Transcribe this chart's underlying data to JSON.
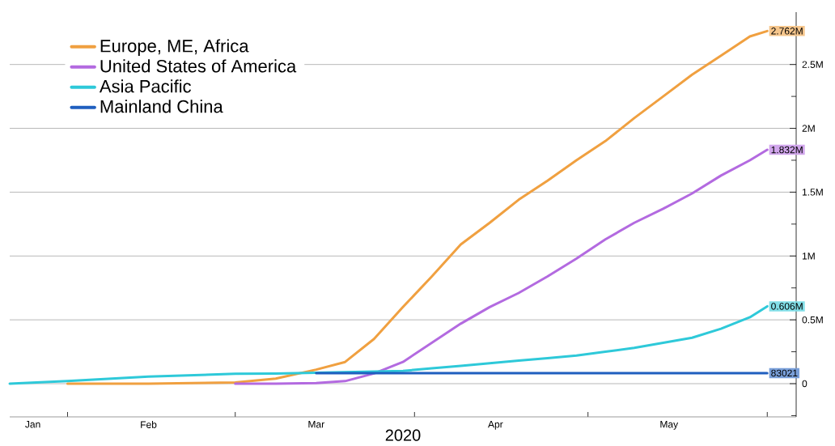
{
  "chart_data": {
    "type": "line",
    "xlabel": "2020",
    "x": [
      "2020-01-22",
      "2020-02-01",
      "2020-02-15",
      "2020-03-01",
      "2020-03-08",
      "2020-03-15",
      "2020-03-20",
      "2020-03-25",
      "2020-03-30",
      "2020-04-04",
      "2020-04-09",
      "2020-04-14",
      "2020-04-19",
      "2020-04-24",
      "2020-04-29",
      "2020-05-04",
      "2020-05-09",
      "2020-05-14",
      "2020-05-19",
      "2020-05-24",
      "2020-05-29",
      "2020-06-01"
    ],
    "series": [
      {
        "name": "Europe, ME, Africa",
        "color": "#f0a040",
        "values": [
          null,
          0,
          0,
          10000,
          40000,
          110000,
          170000,
          350000,
          600000,
          840000,
          1090000,
          1260000,
          1440000,
          1590000,
          1750000,
          1900000,
          2080000,
          2250000,
          2420000,
          2570000,
          2720000,
          2762000
        ],
        "value_labels": [
          null,
          null,
          null,
          null,
          null,
          null,
          null,
          null,
          null,
          null,
          null,
          null,
          null,
          null,
          null,
          null,
          null,
          null,
          null,
          null,
          null,
          "2.762M"
        ]
      },
      {
        "name": "United States of America",
        "color": "#b36ae0",
        "values": [
          null,
          null,
          null,
          0,
          0,
          5000,
          20000,
          80000,
          170000,
          320000,
          470000,
          600000,
          710000,
          840000,
          980000,
          1130000,
          1260000,
          1370000,
          1490000,
          1630000,
          1750000,
          1832000
        ],
        "value_labels": [
          null,
          null,
          null,
          null,
          null,
          null,
          null,
          null,
          null,
          null,
          null,
          null,
          null,
          null,
          null,
          null,
          null,
          null,
          null,
          null,
          null,
          "1.832M"
        ]
      },
      {
        "name": "Asia Pacific",
        "color": "#2ec9d9",
        "values": [
          0,
          20000,
          55000,
          77000,
          80000,
          85000,
          90000,
          95000,
          100000,
          120000,
          140000,
          160000,
          180000,
          200000,
          220000,
          250000,
          280000,
          320000,
          360000,
          430000,
          520000,
          606000
        ],
        "value_labels": [
          null,
          null,
          null,
          null,
          null,
          null,
          null,
          null,
          null,
          null,
          null,
          null,
          null,
          null,
          null,
          null,
          null,
          null,
          null,
          null,
          null,
          "0.606M"
        ]
      },
      {
        "name": "Mainland China",
        "color": "#1f5fbf",
        "x": [
          "2020-03-15",
          "2020-06-01"
        ],
        "values": [
          83021,
          83021
        ],
        "value_labels": [
          null,
          "83021"
        ]
      }
    ],
    "xlim": [
      "2020-01-22",
      "2020-06-06"
    ],
    "xticks": [
      {
        "value": "2020-01-26",
        "label": "Jan"
      },
      {
        "value": "2020-02-01",
        "label": null
      },
      {
        "value": "2020-02-15",
        "label": "Feb"
      },
      {
        "value": "2020-03-01",
        "label": null
      },
      {
        "value": "2020-03-15",
        "label": "Mar"
      },
      {
        "value": "2020-04-01",
        "label": null
      },
      {
        "value": "2020-04-15",
        "label": "Apr"
      },
      {
        "value": "2020-05-01",
        "label": null
      },
      {
        "value": "2020-05-15",
        "label": "May"
      },
      {
        "value": "2020-06-01",
        "label": null
      }
    ],
    "ylim": [
      -260000,
      2910000
    ],
    "yticks": [
      {
        "value": -250000,
        "label": null
      },
      {
        "value": 0,
        "label": "0"
      },
      {
        "value": 250000,
        "label": null
      },
      {
        "value": 500000,
        "label": "0.5M"
      },
      {
        "value": 750000,
        "label": null
      },
      {
        "value": 1000000,
        "label": "1M"
      },
      {
        "value": 1250000,
        "label": null
      },
      {
        "value": 1500000,
        "label": "1.5M"
      },
      {
        "value": 1750000,
        "label": null
      },
      {
        "value": 2000000,
        "label": "2M"
      },
      {
        "value": 2250000,
        "label": null
      },
      {
        "value": 2500000,
        "label": "2.5M"
      },
      {
        "value": 2750000,
        "label": null
      }
    ],
    "grid": "y",
    "legend": "top left",
    "marker": "none",
    "line_style": "solid"
  }
}
